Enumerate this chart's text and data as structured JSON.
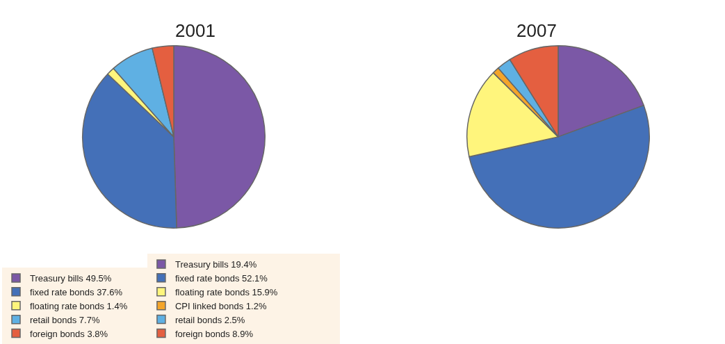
{
  "chart_data": [
    {
      "type": "pie",
      "title": "2001",
      "legend": "bottom",
      "categories": [
        "Treasury bills",
        "fixed rate bonds",
        "floating rate bonds",
        "retail bonds",
        "foreign bonds"
      ],
      "values": [
        49.5,
        37.6,
        1.4,
        7.7,
        3.8
      ],
      "value_labels": [
        "49.5%",
        "37.6%",
        "1.4%",
        "7.7%",
        "3.8%"
      ],
      "colors": [
        "#7b58a6",
        "#4470b8",
        "#fff57c",
        "#5fb0e3",
        "#e45f40"
      ]
    },
    {
      "type": "pie",
      "title": "2007",
      "legend": "bottom",
      "categories": [
        "Treasury bills",
        "fixed rate bonds",
        "floating rate bonds",
        "CPI linked bonds",
        "retail bonds",
        "foreign bonds"
      ],
      "values": [
        19.4,
        52.1,
        15.9,
        1.2,
        2.5,
        8.9
      ],
      "value_labels": [
        "19.4%",
        "52.1%",
        "15.9%",
        "1.2%",
        "2.5%",
        "8.9%"
      ],
      "colors": [
        "#7b58a6",
        "#4470b8",
        "#fff57c",
        "#f4a52a",
        "#5fb0e3",
        "#e45f40"
      ]
    }
  ]
}
